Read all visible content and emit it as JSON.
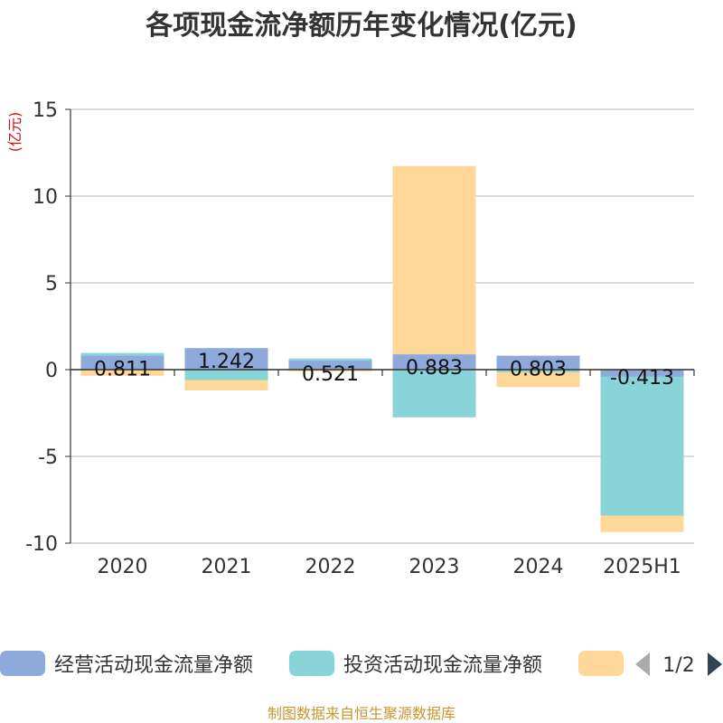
{
  "chart_data": {
    "type": "bar",
    "title": "各项现金流净额历年变化情况(亿元)",
    "ylabel": "(亿元)",
    "ylim": [
      -10,
      15
    ],
    "yticks": [
      15,
      10,
      5,
      0,
      -5,
      -10
    ],
    "grid": true,
    "stacked": true,
    "categories": [
      "2020",
      "2021",
      "2022",
      "2023",
      "2024",
      "2025H1"
    ],
    "series": [
      {
        "name": "经营活动现金流量净额",
        "color": "#8eaadb",
        "values": [
          0.811,
          1.242,
          0.521,
          0.883,
          0.803,
          -0.413
        ]
      },
      {
        "name": "投资活动现金流量净额",
        "color": "#88d4d8",
        "values": [
          0.15,
          -0.6,
          0.12,
          -2.75,
          -0.15,
          -8.0
        ]
      },
      {
        "name": "",
        "color": "#ffd899",
        "values": [
          -0.35,
          -0.6,
          -0.1,
          10.85,
          -0.85,
          -0.95
        ]
      }
    ],
    "data_labels": [
      "0.811",
      "1.242",
      "0.521",
      "0.883",
      "0.803",
      "-0.413"
    ],
    "legend_placement": "bottom"
  },
  "legend": {
    "page": "1/2"
  },
  "source": "制图数据来自恒生聚源数据库"
}
